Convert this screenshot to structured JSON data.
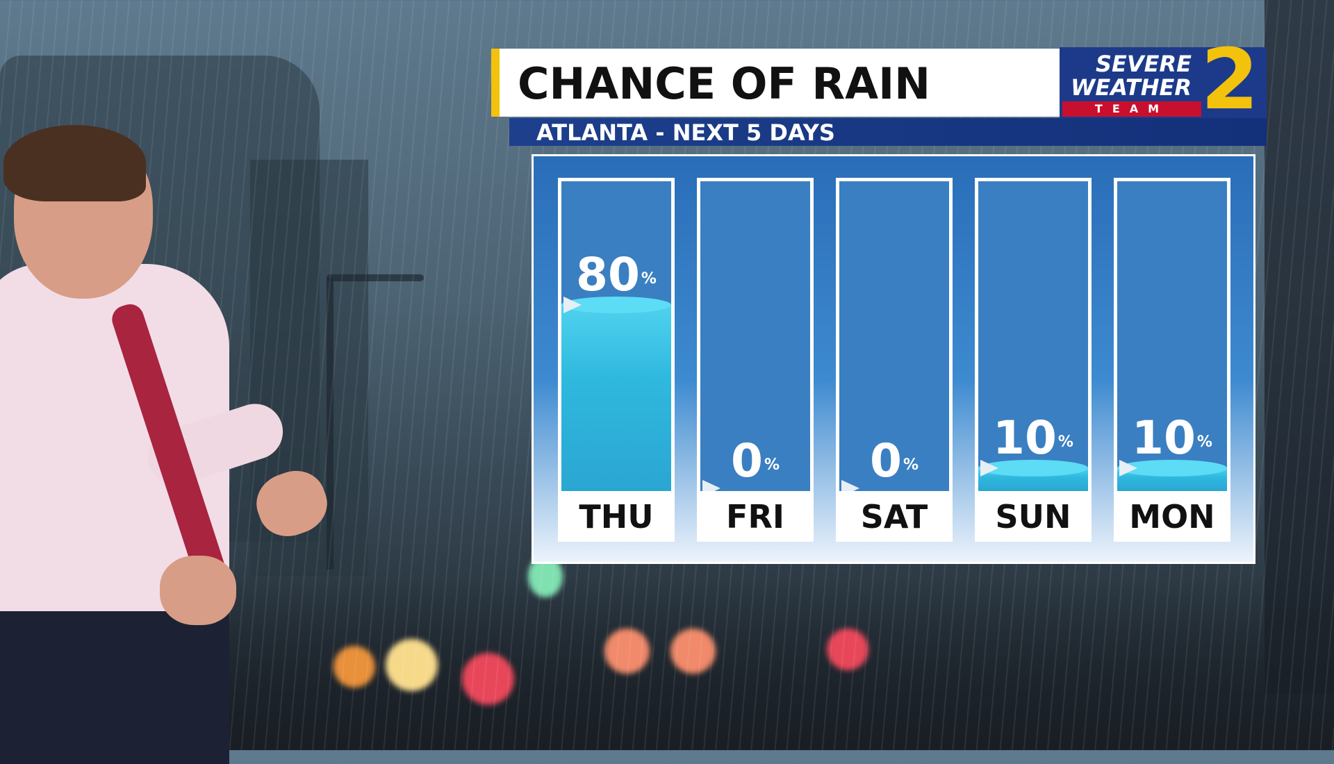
{
  "title": "CHANCE OF RAIN",
  "subtitle": "ATLANTA - NEXT 5 DAYS",
  "logo": {
    "line1": "SEVERE",
    "line2": "WEATHER",
    "line3": "TEAM",
    "channel": "2"
  },
  "colors": {
    "accent": "#f3c20c",
    "navy": "#1d3a8a",
    "water": "#2fb8de"
  },
  "chart_data": {
    "type": "bar",
    "title": "CHANCE OF RAIN",
    "subtitle": "ATLANTA - NEXT 5 DAYS",
    "categories": [
      "THU",
      "FRI",
      "SAT",
      "SUN",
      "MON"
    ],
    "values": [
      80,
      0,
      0,
      10,
      10
    ],
    "unit": "%",
    "ylim": [
      0,
      100
    ]
  },
  "labels": [
    "80",
    "0",
    "0",
    "10",
    "10"
  ],
  "pct_sign": "%"
}
